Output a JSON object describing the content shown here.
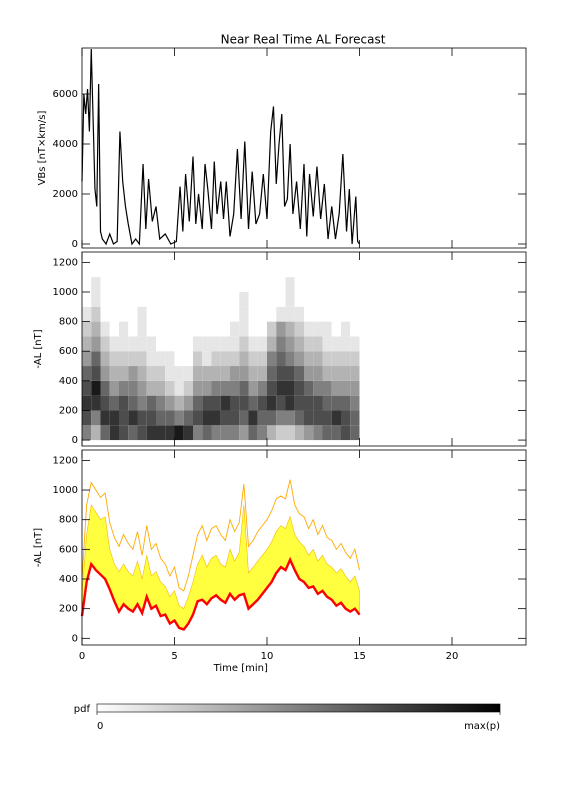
{
  "chart_data": [
    {
      "type": "line",
      "title": "Near Real Time AL Forecast",
      "ylabel": "VBs [nT×km/s]",
      "color": "#000000",
      "xlim": [
        0,
        24
      ],
      "xticks": [
        0,
        5,
        10,
        15,
        20
      ],
      "xtick_labels": false,
      "ylim": [
        -160,
        7840
      ],
      "yticks": [
        0,
        2000,
        4000,
        6000
      ],
      "x": [
        0,
        0.1,
        0.2,
        0.3,
        0.4,
        0.5,
        0.6,
        0.7,
        0.8,
        0.9,
        1.0,
        1.1,
        1.3,
        1.5,
        1.7,
        1.9,
        2.05,
        2.2,
        2.35,
        2.5,
        2.7,
        2.9,
        3.1,
        3.3,
        3.45,
        3.6,
        3.8,
        4.0,
        4.2,
        4.5,
        4.8,
        5.1,
        5.3,
        5.45,
        5.6,
        5.8,
        6.0,
        6.15,
        6.3,
        6.5,
        6.65,
        6.8,
        7.0,
        7.15,
        7.3,
        7.5,
        7.65,
        7.8,
        8.0,
        8.2,
        8.4,
        8.6,
        8.8,
        9.0,
        9.2,
        9.4,
        9.6,
        9.8,
        10.0,
        10.2,
        10.35,
        10.5,
        10.65,
        10.8,
        10.95,
        11.1,
        11.25,
        11.4,
        11.6,
        11.8,
        12.0,
        12.15,
        12.3,
        12.5,
        12.7,
        12.9,
        13.1,
        13.3,
        13.5,
        13.7,
        13.9,
        14.1,
        14.3,
        14.45,
        14.6,
        14.8,
        14.9,
        15.0
      ],
      "values": [
        2500,
        6000,
        5200,
        6200,
        4500,
        7800,
        5000,
        2200,
        1500,
        6400,
        500,
        200,
        0,
        400,
        0,
        100,
        4500,
        2500,
        1500,
        800,
        0,
        200,
        0,
        3200,
        600,
        2600,
        900,
        1500,
        200,
        400,
        0,
        100,
        2300,
        500,
        2800,
        900,
        3500,
        800,
        2000,
        600,
        3200,
        2200,
        600,
        3300,
        1200,
        2500,
        1000,
        2500,
        300,
        1200,
        3800,
        1000,
        4100,
        600,
        2900,
        800,
        1200,
        2800,
        1000,
        4500,
        5500,
        2400,
        4000,
        5200,
        1500,
        1800,
        4000,
        1200,
        2500,
        600,
        3200,
        300,
        2800,
        1100,
        3100,
        1000,
        2400,
        200,
        1500,
        200,
        1200,
        3600,
        500,
        2200,
        0,
        1900,
        100,
        0
      ]
    },
    {
      "type": "heatmap",
      "ylabel": "-AL [nT]",
      "xlim": [
        0,
        24
      ],
      "xticks": [
        0,
        5,
        10,
        15,
        20
      ],
      "xtick_labels": false,
      "ylim": [
        -40,
        1270
      ],
      "yticks": [
        0,
        200,
        400,
        600,
        800,
        1000,
        1200
      ],
      "x_bins": [
        0,
        0.5,
        1,
        1.5,
        2,
        2.5,
        3,
        3.5,
        4,
        4.5,
        5,
        5.5,
        6,
        6.5,
        7,
        7.5,
        8,
        8.5,
        9,
        9.5,
        10,
        10.5,
        11,
        11.5,
        12,
        12.5,
        13,
        13.5,
        14,
        14.5,
        15
      ],
      "y_bins": [
        0,
        100,
        200,
        300,
        400,
        500,
        600,
        700,
        800,
        900,
        1000,
        1100
      ],
      "zlim": [
        0,
        1
      ],
      "z": [
        [
          0.5,
          0.7,
          0.8,
          0.7,
          0.6,
          0.4,
          0.3,
          0.2,
          0.1,
          0,
          0
        ],
        [
          0.3,
          0.5,
          0.8,
          0.9,
          0.7,
          0.6,
          0.4,
          0.3,
          0.2,
          0.1,
          0.1
        ],
        [
          0.6,
          0.8,
          0.7,
          0.6,
          0.4,
          0.3,
          0.2,
          0.1,
          0,
          0,
          0
        ],
        [
          0.8,
          0.8,
          0.6,
          0.4,
          0.3,
          0.2,
          0.1,
          0,
          0,
          0,
          0
        ],
        [
          0.7,
          0.7,
          0.7,
          0.5,
          0.3,
          0.2,
          0.1,
          0.1,
          0,
          0,
          0
        ],
        [
          0.6,
          0.8,
          0.6,
          0.5,
          0.4,
          0.2,
          0.1,
          0,
          0,
          0,
          0
        ],
        [
          0.7,
          0.7,
          0.5,
          0.4,
          0.3,
          0.2,
          0.1,
          0.1,
          0.1,
          0,
          0
        ],
        [
          0.8,
          0.7,
          0.6,
          0.3,
          0.2,
          0.1,
          0.1,
          0,
          0,
          0,
          0
        ],
        [
          0.8,
          0.6,
          0.5,
          0.3,
          0.2,
          0.1,
          0,
          0,
          0,
          0,
          0
        ],
        [
          0.8,
          0.6,
          0.4,
          0.2,
          0.1,
          0.1,
          0,
          0,
          0,
          0,
          0
        ],
        [
          0.9,
          0.5,
          0.3,
          0.1,
          0.1,
          0,
          0,
          0,
          0,
          0,
          0
        ],
        [
          0.8,
          0.6,
          0.4,
          0.2,
          0.1,
          0,
          0,
          0,
          0,
          0,
          0
        ],
        [
          0.5,
          0.7,
          0.6,
          0.4,
          0.3,
          0.2,
          0.1,
          0,
          0,
          0,
          0
        ],
        [
          0.6,
          0.8,
          0.7,
          0.4,
          0.3,
          0.1,
          0.1,
          0,
          0,
          0,
          0
        ],
        [
          0.5,
          0.8,
          0.7,
          0.5,
          0.3,
          0.2,
          0.1,
          0,
          0,
          0,
          0
        ],
        [
          0.5,
          0.7,
          0.8,
          0.5,
          0.3,
          0.2,
          0.1,
          0,
          0,
          0,
          0
        ],
        [
          0.5,
          0.7,
          0.7,
          0.5,
          0.4,
          0.2,
          0.1,
          0.1,
          0,
          0,
          0
        ],
        [
          0.4,
          0.6,
          0.7,
          0.6,
          0.4,
          0.3,
          0.2,
          0.1,
          0.1,
          0.1,
          0
        ],
        [
          0.6,
          0.8,
          0.6,
          0.4,
          0.3,
          0.2,
          0.1,
          0,
          0,
          0,
          0
        ],
        [
          0.5,
          0.6,
          0.7,
          0.5,
          0.3,
          0.2,
          0.1,
          0,
          0,
          0,
          0
        ],
        [
          0.3,
          0.6,
          0.8,
          0.7,
          0.6,
          0.5,
          0.3,
          0.2,
          0,
          0,
          0
        ],
        [
          0.2,
          0.5,
          0.7,
          0.8,
          0.7,
          0.6,
          0.5,
          0.4,
          0.1,
          0,
          0
        ],
        [
          0.2,
          0.5,
          0.8,
          0.8,
          0.7,
          0.5,
          0.4,
          0.3,
          0.1,
          0.1,
          0.1
        ],
        [
          0.3,
          0.6,
          0.7,
          0.7,
          0.6,
          0.4,
          0.3,
          0.2,
          0.1,
          0,
          0
        ],
        [
          0.4,
          0.7,
          0.7,
          0.6,
          0.4,
          0.3,
          0.2,
          0.1,
          0,
          0,
          0
        ],
        [
          0.5,
          0.7,
          0.7,
          0.5,
          0.4,
          0.3,
          0.2,
          0.1,
          0,
          0,
          0
        ],
        [
          0.6,
          0.7,
          0.6,
          0.5,
          0.3,
          0.2,
          0.1,
          0.1,
          0,
          0,
          0
        ],
        [
          0.6,
          0.8,
          0.6,
          0.4,
          0.3,
          0.2,
          0.1,
          0,
          0,
          0,
          0
        ],
        [
          0.7,
          0.7,
          0.6,
          0.4,
          0.3,
          0.2,
          0.1,
          0.1,
          0,
          0,
          0
        ],
        [
          0.6,
          0.6,
          0.5,
          0.4,
          0.3,
          0.2,
          0.1,
          0,
          0,
          0,
          0
        ]
      ]
    },
    {
      "type": "band",
      "ylabel": "-AL [nT]",
      "xlabel": "Time [min]",
      "xlim": [
        0,
        24
      ],
      "xticks": [
        0,
        5,
        10,
        15,
        20
      ],
      "xtick_labels": true,
      "ylim": [
        -45,
        1270
      ],
      "yticks": [
        0,
        200,
        400,
        600,
        800,
        1000,
        1200
      ],
      "x": [
        0,
        0.25,
        0.5,
        0.75,
        1,
        1.25,
        1.5,
        1.75,
        2,
        2.25,
        2.5,
        2.75,
        3,
        3.25,
        3.5,
        3.75,
        4,
        4.25,
        4.5,
        4.75,
        5,
        5.25,
        5.5,
        5.75,
        6,
        6.25,
        6.5,
        6.75,
        7,
        7.25,
        7.5,
        7.75,
        8,
        8.25,
        8.5,
        8.75,
        9,
        9.25,
        9.5,
        9.75,
        10,
        10.25,
        10.5,
        10.75,
        11,
        11.25,
        11.5,
        11.75,
        12,
        12.25,
        12.5,
        12.75,
        13,
        13.25,
        13.5,
        13.75,
        14,
        14.25,
        14.5,
        14.75,
        15
      ],
      "band": {
        "color": "#ffff40",
        "values": [
          300,
          700,
          900,
          850,
          800,
          820,
          600,
          500,
          450,
          500,
          450,
          420,
          520,
          400,
          560,
          420,
          450,
          380,
          350,
          280,
          320,
          220,
          200,
          280,
          380,
          500,
          560,
          480,
          540,
          560,
          500,
          480,
          600,
          520,
          580,
          900,
          440,
          480,
          520,
          560,
          600,
          650,
          720,
          760,
          740,
          820,
          700,
          650,
          620,
          560,
          600,
          520,
          560,
          500,
          480,
          440,
          470,
          420,
          380,
          420,
          320
        ]
      },
      "series": [
        {
          "color": "#ffaa00",
          "values": [
            400,
            900,
            1050,
            1000,
            950,
            980,
            780,
            680,
            620,
            700,
            640,
            600,
            720,
            560,
            760,
            600,
            640,
            540,
            500,
            420,
            480,
            340,
            320,
            420,
            560,
            700,
            760,
            660,
            740,
            760,
            700,
            660,
            800,
            720,
            780,
            1040,
            620,
            660,
            720,
            760,
            800,
            860,
            940,
            960,
            940,
            1070,
            900,
            840,
            820,
            740,
            800,
            700,
            760,
            680,
            660,
            600,
            640,
            580,
            540,
            600,
            460
          ]
        },
        {
          "color": "#ff0000",
          "values": [
            150,
            380,
            500,
            460,
            430,
            400,
            330,
            250,
            180,
            230,
            200,
            180,
            230,
            170,
            280,
            200,
            220,
            150,
            160,
            100,
            120,
            70,
            60,
            100,
            160,
            250,
            260,
            230,
            270,
            290,
            260,
            240,
            300,
            260,
            290,
            300,
            200,
            230,
            260,
            300,
            340,
            380,
            440,
            480,
            460,
            530,
            460,
            400,
            380,
            340,
            350,
            300,
            320,
            280,
            260,
            220,
            240,
            200,
            180,
            200,
            160
          ]
        }
      ]
    }
  ],
  "colorbar": {
    "label": "pdf",
    "range": [
      0,
      1
    ],
    "ticks": [
      0,
      {
        "value": 1,
        "label": "max(p)"
      }
    ]
  }
}
